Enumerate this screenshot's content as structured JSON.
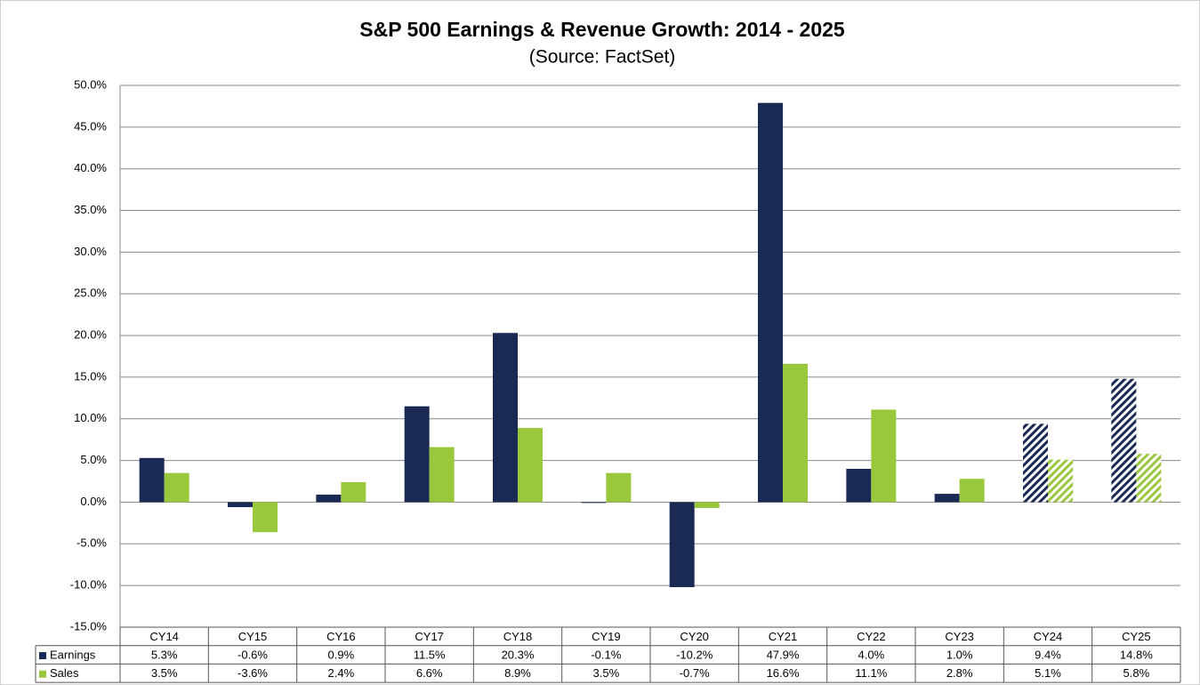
{
  "chart_data": {
    "type": "bar",
    "title": "S&P 500 Earnings & Revenue Growth: 2014 - 2025",
    "subtitle": "(Source: FactSet)",
    "categories": [
      "CY14",
      "CY15",
      "CY16",
      "CY17",
      "CY18",
      "CY19",
      "CY20",
      "CY21",
      "CY22",
      "CY23",
      "CY24",
      "CY25"
    ],
    "hatched": [
      false,
      false,
      false,
      false,
      false,
      false,
      false,
      false,
      false,
      false,
      true,
      true
    ],
    "series": [
      {
        "name": "Earnings",
        "color": "#1a2a55",
        "values": [
          5.3,
          -0.6,
          0.9,
          11.5,
          20.3,
          -0.1,
          -10.2,
          47.9,
          4.0,
          1.0,
          9.4,
          14.8
        ],
        "value_labels": [
          "5.3%",
          "-0.6%",
          "0.9%",
          "11.5%",
          "20.3%",
          "-0.1%",
          "-10.2%",
          "47.9%",
          "4.0%",
          "1.0%",
          "9.4%",
          "14.8%"
        ]
      },
      {
        "name": "Sales",
        "color": "#99c83c",
        "values": [
          3.5,
          -3.6,
          2.4,
          6.6,
          8.9,
          3.5,
          -0.7,
          16.6,
          11.1,
          2.8,
          5.1,
          5.8
        ],
        "value_labels": [
          "3.5%",
          "-3.6%",
          "2.4%",
          "6.6%",
          "8.9%",
          "3.5%",
          "-0.7%",
          "16.6%",
          "11.1%",
          "2.8%",
          "5.1%",
          "5.8%"
        ]
      }
    ],
    "ylim": [
      -15,
      50
    ],
    "yticks": [
      {
        "value": -15,
        "label": "-15.0%"
      },
      {
        "value": -10,
        "label": "-10.0%"
      },
      {
        "value": -5,
        "label": "-5.0%"
      },
      {
        "value": 0,
        "label": "0.0%"
      },
      {
        "value": 5,
        "label": "5.0%"
      },
      {
        "value": 10,
        "label": "10.0%"
      },
      {
        "value": 15,
        "label": "15.0%"
      },
      {
        "value": 20,
        "label": "20.0%"
      },
      {
        "value": 25,
        "label": "25.0%"
      },
      {
        "value": 30,
        "label": "30.0%"
      },
      {
        "value": 35,
        "label": "35.0%"
      },
      {
        "value": 40,
        "label": "40.0%"
      },
      {
        "value": 45,
        "label": "45.0%"
      },
      {
        "value": 50,
        "label": "50.0%"
      }
    ],
    "grid": true
  }
}
